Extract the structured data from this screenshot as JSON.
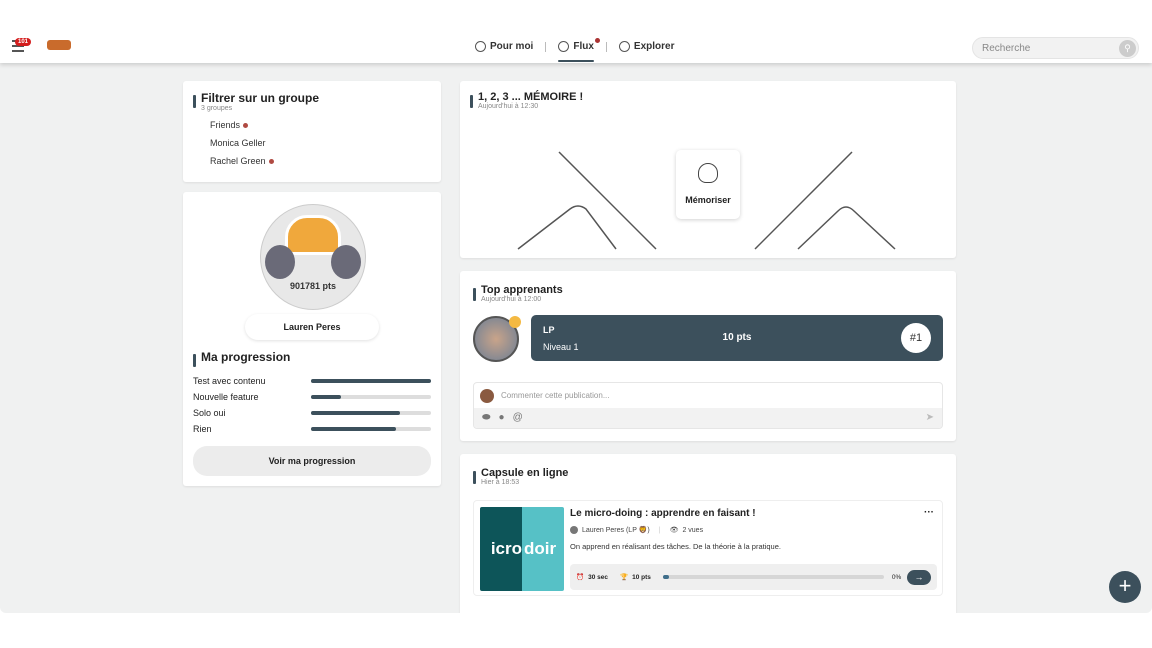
{
  "header": {
    "nav": [
      {
        "label": "Pour moi",
        "icon": "user-circle-icon"
      },
      {
        "label": "Flux",
        "icon": "feed-icon",
        "active": true,
        "notification": true
      },
      {
        "label": "Explorer",
        "icon": "compass-icon"
      }
    ],
    "search_placeholder": "Recherche"
  },
  "groups": {
    "title": "Filtrer sur un groupe",
    "count": "3 groupes",
    "items": [
      {
        "label": "Friends",
        "dot": true
      },
      {
        "label": "Monica Geller",
        "dot": false
      },
      {
        "label": "Rachel Green",
        "dot": true
      }
    ]
  },
  "profile": {
    "points": "901781 pts",
    "name": "Lauren Peres",
    "progress_title": "Ma progression",
    "progress": [
      {
        "label": "Test avec contenu",
        "value": 100
      },
      {
        "label": "Nouvelle feature",
        "value": 25
      },
      {
        "label": "Solo oui",
        "value": 74
      },
      {
        "label": "Rien",
        "value": 71
      }
    ],
    "button": "Voir ma progression"
  },
  "memoire": {
    "title": "1, 2, 3 ... MÉMOIRE !",
    "time": "Aujourd'hui à 12:30",
    "button": "Mémoriser"
  },
  "top": {
    "title": "Top apprenants",
    "time": "Aujourd'hui à 12:00",
    "learner": {
      "name": "LP",
      "level": "Niveau 1",
      "points": "10 pts",
      "rank": "#1"
    },
    "comment_placeholder": "Commenter cette publication..."
  },
  "capsule": {
    "title": "Capsule en ligne",
    "time": "Hier à 18:53",
    "thumb_left": "icro",
    "thumb_right": "doir",
    "name": "Le micro-doing : apprendre en faisant !",
    "author": "Lauren Peres (LP 🦁)",
    "views": "2 vues",
    "description": "On apprend en réalisant des tâches. De la théorie à la pratique.",
    "duration": "30 sec",
    "points": "10 pts",
    "progress": "0%",
    "more": "···"
  },
  "fab": "+"
}
